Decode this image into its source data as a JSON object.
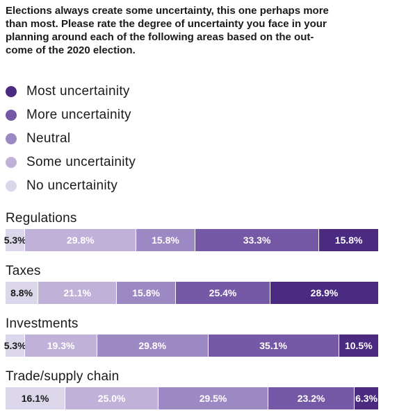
{
  "chart_data": {
    "type": "bar",
    "orientation": "horizontal",
    "stacked": true,
    "title": "Elections always create some uncertainty, this one perhaps more than most. Please rate the degree of uncertainty you face in your planning around each of the following areas based on the out-come of the 2020 election.",
    "title_lines": [
      "Elections always create some uncertainty, this one perhaps more",
      "than most. Please rate the degree of uncertainty you face in your",
      "planning around each of the following areas based on the out-",
      "come of the 2020 election."
    ],
    "categories": [
      "Regulations",
      "Taxes",
      "Investments",
      "Trade/supply chain"
    ],
    "legend_position": "top-left",
    "unit_suffix": "%",
    "series": [
      {
        "name": "No uncertainity",
        "color": "#dcd6ea",
        "text_color": "#1a1a1a",
        "values": [
          5.3,
          8.8,
          5.3,
          16.1
        ]
      },
      {
        "name": "Some uncertainity",
        "color": "#bfb1d7",
        "text_color": "#ffffff",
        "values": [
          29.8,
          21.1,
          19.3,
          25.0
        ]
      },
      {
        "name": "Neutral",
        "color": "#9c88c2",
        "text_color": "#ffffff",
        "values": [
          15.8,
          15.8,
          29.8,
          29.5
        ]
      },
      {
        "name": "More uncertainity",
        "color": "#7558a6",
        "text_color": "#ffffff",
        "values": [
          33.3,
          25.4,
          35.1,
          23.2
        ]
      },
      {
        "name": "Most uncertainity",
        "color": "#4b2a82",
        "text_color": "#ffffff",
        "values": [
          15.8,
          28.9,
          10.5,
          6.3
        ]
      }
    ],
    "legend_order": [
      "Most uncertainity",
      "More uncertainity",
      "Neutral",
      "Some uncertainity",
      "No uncertainity"
    ]
  }
}
